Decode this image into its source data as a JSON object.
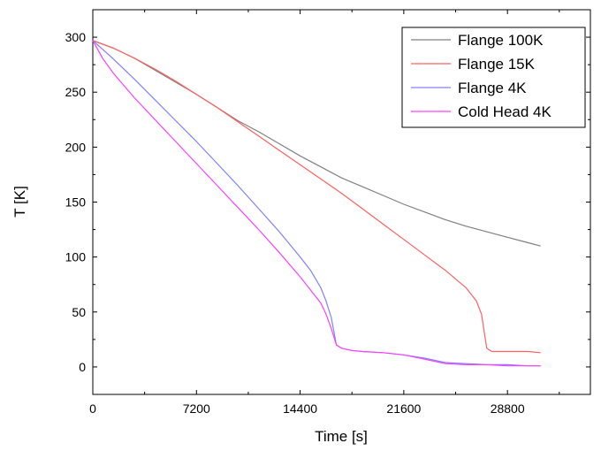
{
  "chart_data": {
    "type": "line",
    "title": "",
    "xlabel": "Time [s]",
    "ylabel": "T [K]",
    "xlim": [
      0,
      34560
    ],
    "ylim": [
      -25,
      325
    ],
    "xticks": [
      0,
      7200,
      14400,
      21600,
      28800
    ],
    "xtick_labels": [
      "0",
      "7200",
      "14400",
      "21600",
      "28800"
    ],
    "yticks": [
      0,
      50,
      100,
      150,
      200,
      250,
      300
    ],
    "ytick_labels": [
      "0",
      "50",
      "100",
      "150",
      "200",
      "250",
      "300"
    ],
    "grid": false,
    "legend_position": "top-right",
    "series": [
      {
        "name": "Flange 100K",
        "color": "#808080",
        "x": [
          0,
          1440,
          2880,
          4320,
          5760,
          7200,
          8640,
          10080,
          11520,
          12960,
          14400,
          15840,
          17280,
          18720,
          20160,
          21600,
          23040,
          24480,
          25920,
          27360,
          28800,
          30240,
          31104
        ],
        "y": [
          297,
          290,
          281,
          270,
          259,
          248,
          236,
          224,
          214,
          203,
          192,
          182,
          172,
          164,
          156,
          148,
          141,
          134,
          128,
          123,
          118,
          113,
          110
        ]
      },
      {
        "name": "Flange 15K",
        "color": "#ff6060",
        "x": [
          0,
          1440,
          2880,
          4320,
          5760,
          7200,
          8640,
          10080,
          11520,
          12960,
          14400,
          15840,
          17280,
          18720,
          20160,
          21600,
          23040,
          24480,
          25920,
          26640,
          27000,
          27360,
          27720,
          28800,
          30240,
          31104
        ],
        "y": [
          297,
          290,
          281,
          271,
          260,
          248,
          236,
          223,
          210,
          197,
          184,
          171,
          158,
          144,
          130,
          116,
          102,
          88,
          72,
          60,
          48,
          17,
          14,
          14,
          14,
          13
        ]
      },
      {
        "name": "Flange 4K",
        "color": "#8080ff",
        "x": [
          0,
          1440,
          2880,
          4320,
          5760,
          7200,
          8640,
          10080,
          11520,
          12960,
          14400,
          15120,
          15840,
          16200,
          16560,
          16920,
          17280,
          18000,
          18720,
          20160,
          21600,
          23040,
          24480,
          25920,
          27360,
          28800,
          30240,
          31104
        ],
        "y": [
          297,
          280,
          262,
          243,
          224,
          205,
          185,
          165,
          144,
          123,
          100,
          88,
          72,
          60,
          45,
          20,
          17,
          15,
          14,
          13,
          11,
          8,
          4,
          3,
          2,
          2,
          1,
          1
        ]
      },
      {
        "name": "Cold Head 4K",
        "color": "#ff40ff",
        "x": [
          0,
          720,
          1440,
          2880,
          4320,
          5760,
          7200,
          8640,
          10080,
          11520,
          12960,
          14400,
          15120,
          15840,
          16200,
          16560,
          16920,
          17280,
          18000,
          18720,
          20160,
          21600,
          23040,
          24480,
          25920,
          27360,
          28800,
          30240,
          31104
        ],
        "y": [
          297,
          280,
          267,
          245,
          225,
          205,
          185,
          165,
          145,
          125,
          104,
          82,
          70,
          58,
          48,
          35,
          20,
          17,
          15,
          14,
          13,
          11,
          7,
          3,
          2,
          2,
          1,
          1,
          1
        ]
      }
    ]
  }
}
